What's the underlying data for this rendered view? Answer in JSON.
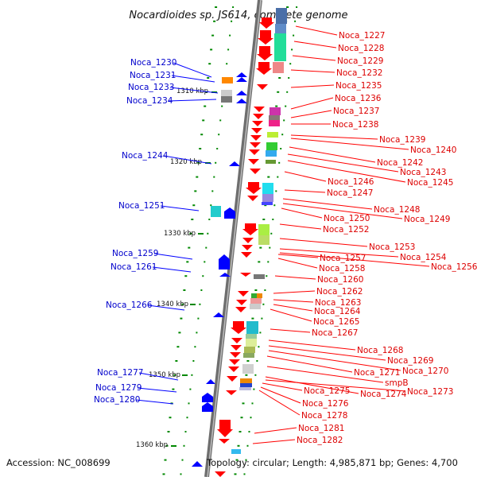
{
  "title": "Nocardioides sp. JS614, complete genome",
  "accession": "Accession: NC_008699",
  "summary": "Topology: circular; Length: 4,985,871 bp; Genes: 4,700",
  "scale_labels": [
    "1310 kbp",
    "1320 kbp",
    "1330 kbp",
    "1340 kbp",
    "1350 kbp",
    "1360 kbp"
  ],
  "left_genes": [
    "Noca_1230",
    "Noca_1231",
    "Noca_1233",
    "Noca_1234",
    "Noca_1244",
    "Noca_1251",
    "Noca_1259",
    "Noca_1261",
    "Noca_1266",
    "Noca_1277",
    "Noca_1279",
    "Noca_1280"
  ],
  "right_genes": [
    "Noca_1227",
    "Noca_1228",
    "Noca_1229",
    "Noca_1232",
    "Noca_1235",
    "Noca_1236",
    "Noca_1237",
    "Noca_1238",
    "Noca_1239",
    "Noca_1240",
    "Noca_1242",
    "Noca_1243",
    "Noca_1245",
    "Noca_1246",
    "Noca_1247",
    "Noca_1248",
    "Noca_1249",
    "Noca_1250",
    "Noca_1252",
    "Noca_1253",
    "Noca_1254",
    "Noca_1256",
    "Noca_1257",
    "Noca_1258",
    "Noca_1260",
    "Noca_1262",
    "Noca_1263",
    "Noca_1264",
    "Noca_1265",
    "Noca_1267",
    "Noca_1268",
    "Noca_1269",
    "Noca_1270",
    "Noca_1271",
    "smpB",
    "Noca_1274",
    "Noca_1273",
    "Noca_1275",
    "Noca_1276",
    "Noca_1278",
    "Noca_1281",
    "Noca_1282"
  ],
  "colors": {
    "forward": "#ff0000",
    "reverse": "#0000ff",
    "backbone": "#888888",
    "left_label": "#0000cc",
    "right_label": "#dd0000",
    "tick": "#008800"
  }
}
